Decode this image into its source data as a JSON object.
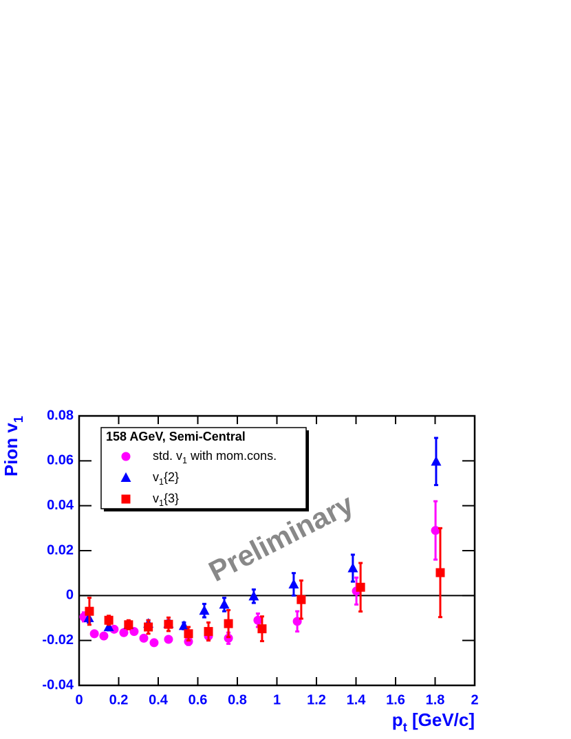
{
  "chart_data": {
    "type": "scatter",
    "xlabel": [
      "p",
      "t",
      "  [GeV/c]"
    ],
    "ylabel": [
      "Pion v",
      "1"
    ],
    "legend_title": "158 AGeV, Semi-Central",
    "annotation": "Preliminary",
    "xlim": [
      0,
      2
    ],
    "xticks": [
      0,
      0.2,
      0.4,
      0.6,
      0.8,
      1,
      1.2,
      1.4,
      1.6,
      1.8,
      2
    ],
    "ylim": [
      -0.04,
      0.08
    ],
    "yticks": [
      -0.04,
      -0.02,
      0,
      0.02,
      0.04,
      0.06,
      0.08
    ],
    "legend": "upper left",
    "series": [
      {
        "name": [
          "std. v",
          "1",
          " with mom.cons."
        ],
        "color": "#ff00ff",
        "marker": "circle",
        "x": [
          0.024,
          0.077,
          0.125,
          0.177,
          0.226,
          0.278,
          0.327,
          0.379,
          0.452,
          0.553,
          0.654,
          0.755,
          0.904,
          1.103,
          1.402,
          1.802
        ],
        "values": [
          -0.0095,
          -0.017,
          -0.018,
          -0.015,
          -0.0165,
          -0.016,
          -0.019,
          -0.021,
          -0.0195,
          -0.0205,
          -0.018,
          -0.019,
          -0.011,
          -0.0115,
          0.002,
          0.029
        ],
        "errors": [
          0.002,
          0.001,
          0.001,
          0.001,
          0.001,
          0.001,
          0.001,
          0.001,
          0.001,
          0.0015,
          0.002,
          0.0025,
          0.003,
          0.0045,
          0.006,
          0.013
        ]
      },
      {
        "name": [
          "v",
          "1",
          "{2}"
        ],
        "color": "#0000ff",
        "marker": "triangle",
        "x": [
          0.049,
          0.15,
          0.25,
          0.35,
          0.452,
          0.53,
          0.633,
          0.734,
          0.883,
          1.085,
          1.384,
          1.805
        ],
        "values": [
          -0.01,
          -0.014,
          -0.013,
          -0.0125,
          -0.0125,
          -0.0135,
          -0.0067,
          -0.004,
          -0.0003,
          0.005,
          0.0122,
          0.0597
        ],
        "errors": [
          0.002,
          0.0015,
          0.0015,
          0.0015,
          0.0015,
          0.0015,
          0.003,
          0.003,
          0.003,
          0.005,
          0.006,
          0.0105
        ]
      },
      {
        "name": [
          "v",
          "1",
          "{3}"
        ],
        "color": "#ff0000",
        "marker": "square",
        "x": [
          0.052,
          0.15,
          0.25,
          0.35,
          0.452,
          0.553,
          0.654,
          0.755,
          0.925,
          1.123,
          1.423,
          1.826
        ],
        "values": [
          -0.007,
          -0.011,
          -0.013,
          -0.014,
          -0.0128,
          -0.017,
          -0.016,
          -0.0125,
          -0.0148,
          -0.0018,
          0.0037,
          0.0102
        ],
        "errors": [
          0.006,
          0.002,
          0.002,
          0.003,
          0.003,
          0.003,
          0.004,
          0.006,
          0.0055,
          0.0085,
          0.0108,
          0.0198
        ]
      }
    ]
  }
}
